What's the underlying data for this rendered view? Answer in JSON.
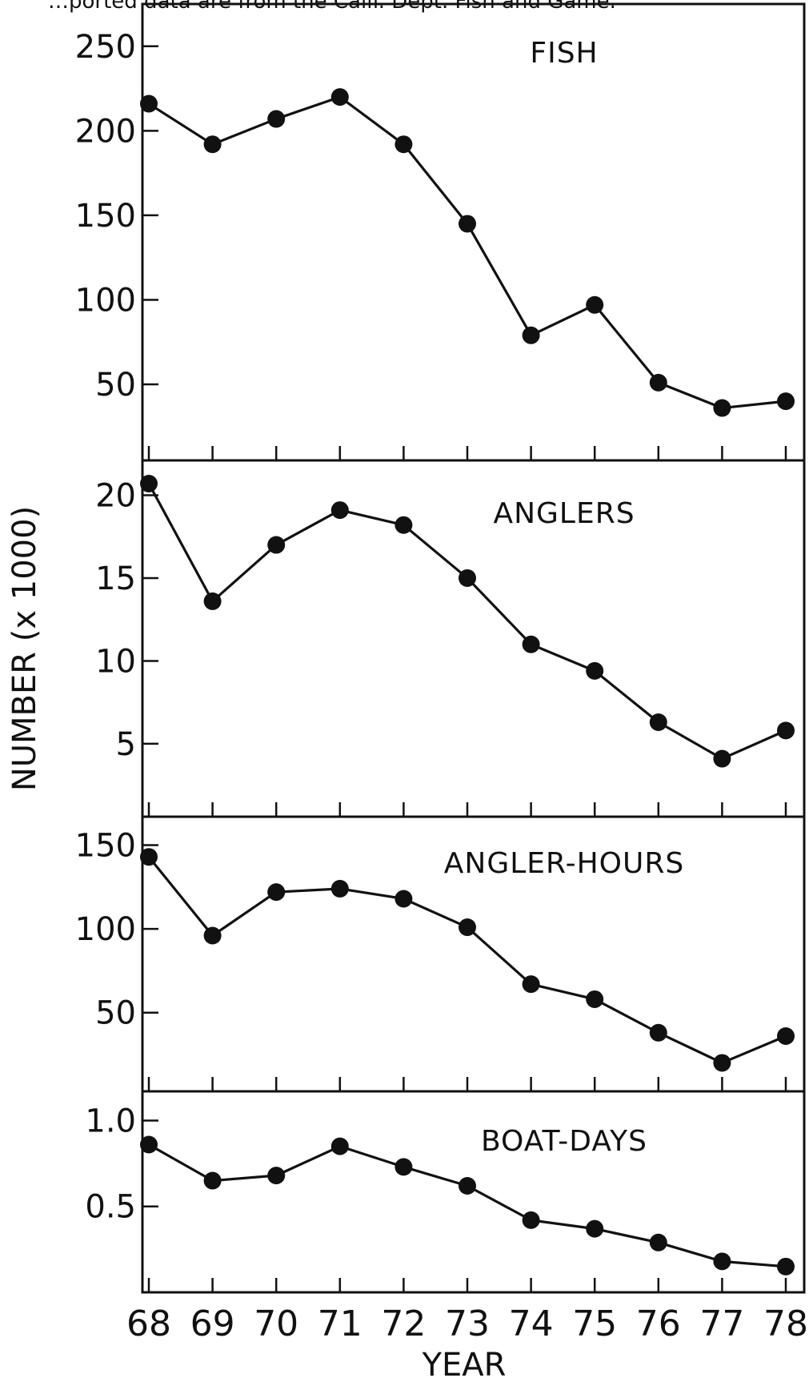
{
  "caption": "…ported data are from the Calif. Dept. Fish and Game.",
  "ylabel": "NUMBER (x 1000)",
  "xlabel": "YEAR",
  "chart_data": [
    {
      "type": "line",
      "title": "FISH",
      "x": [
        "68",
        "69",
        "70",
        "71",
        "72",
        "73",
        "74",
        "75",
        "76",
        "77",
        "78"
      ],
      "values": [
        216,
        192,
        207,
        220,
        192,
        145,
        79,
        97,
        51,
        36,
        40
      ],
      "yticks": [
        50,
        100,
        150,
        200,
        250
      ],
      "ylim": [
        5,
        275
      ]
    },
    {
      "type": "line",
      "title": "ANGLERS",
      "x": [
        "68",
        "69",
        "70",
        "71",
        "72",
        "73",
        "74",
        "75",
        "76",
        "77",
        "78"
      ],
      "values": [
        20.7,
        13.6,
        17.0,
        19.1,
        18.2,
        15.0,
        11.0,
        9.4,
        6.3,
        4.1,
        5.8
      ],
      "yticks": [
        5,
        10,
        15,
        20
      ],
      "ylim": [
        0.6,
        22.1
      ]
    },
    {
      "type": "line",
      "title": "ANGLER-HOURS",
      "x": [
        "68",
        "69",
        "70",
        "71",
        "72",
        "73",
        "74",
        "75",
        "76",
        "77",
        "78"
      ],
      "values": [
        143,
        96,
        122,
        124,
        118,
        101,
        67,
        58,
        38,
        20,
        36
      ],
      "yticks": [
        50,
        100,
        150
      ],
      "ylim": [
        3,
        167
      ]
    },
    {
      "type": "line",
      "title": "BOAT-DAYS",
      "x": [
        "68",
        "69",
        "70",
        "71",
        "72",
        "73",
        "74",
        "75",
        "76",
        "77",
        "78"
      ],
      "values": [
        0.86,
        0.65,
        0.68,
        0.85,
        0.73,
        0.62,
        0.42,
        0.37,
        0.29,
        0.18,
        0.15
      ],
      "yticks": [
        0.5,
        1.0
      ],
      "ylabels": [
        "0.5",
        "1.0"
      ],
      "ylim": [
        0.0,
        1.17
      ]
    }
  ]
}
